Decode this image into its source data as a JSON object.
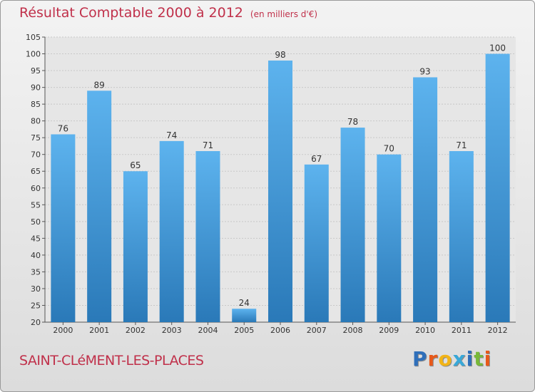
{
  "header": {
    "title": "Résultat Comptable 2000 à 2012",
    "subtitle": "(en milliers d'€)"
  },
  "footer": {
    "commune": "SAINT-CLéMENT-LES-PLACES",
    "logo_letters": [
      "P",
      "r",
      "o",
      "x",
      "i",
      "t",
      "i"
    ],
    "logo_colors": [
      "#2f6fba",
      "#e8591a",
      "#f2b417",
      "#38a8d8",
      "#2f6fba",
      "#78b83a",
      "#e8591a"
    ]
  },
  "chart_data": {
    "type": "bar",
    "title": "Résultat Comptable 2000 à 2012",
    "subtitle": "(en milliers d'€)",
    "categories": [
      "2000",
      "2001",
      "2002",
      "2003",
      "2004",
      "2005",
      "2006",
      "2007",
      "2008",
      "2009",
      "2010",
      "2011",
      "2012"
    ],
    "values": [
      76,
      89,
      65,
      74,
      71,
      24,
      98,
      67,
      78,
      70,
      93,
      71,
      100
    ],
    "ylim": [
      20,
      105
    ],
    "yticks": [
      20,
      25,
      30,
      35,
      40,
      45,
      50,
      55,
      60,
      65,
      70,
      75,
      80,
      85,
      90,
      95,
      100,
      105
    ],
    "grid": true,
    "bar_color": "#4aa3e3"
  }
}
